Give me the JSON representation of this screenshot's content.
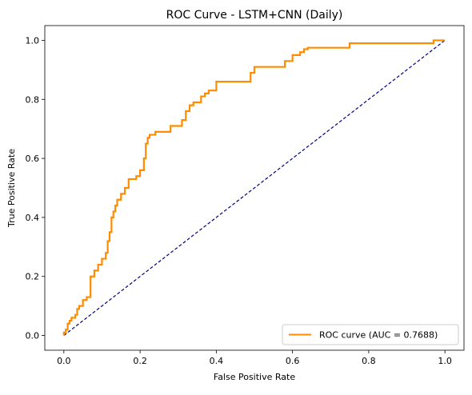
{
  "chart_data": {
    "type": "line",
    "title": "ROC Curve - LSTM+CNN (Daily)",
    "xlabel": "False Positive Rate",
    "ylabel": "True Positive Rate",
    "xlim": [
      -0.05,
      1.05
    ],
    "ylim": [
      -0.05,
      1.05
    ],
    "xticks": [
      0.0,
      0.2,
      0.4,
      0.6,
      0.8,
      1.0
    ],
    "yticks": [
      0.0,
      0.2,
      0.4,
      0.6,
      0.8,
      1.0
    ],
    "tick_labels": [
      "0.0",
      "0.2",
      "0.4",
      "0.6",
      "0.8",
      "1.0"
    ],
    "grid": false,
    "legend": {
      "location": "lower-right",
      "entries": [
        "ROC curve (AUC = 0.7688)"
      ]
    },
    "colors": {
      "roc": "#ff8c00",
      "diagonal": "#000080"
    },
    "series": [
      {
        "name": "ROC curve (AUC = 0.7688)",
        "style": "solid",
        "x": [
          0.0,
          0.0,
          0.005,
          0.005,
          0.01,
          0.01,
          0.015,
          0.015,
          0.02,
          0.02,
          0.03,
          0.03,
          0.035,
          0.035,
          0.04,
          0.04,
          0.05,
          0.05,
          0.06,
          0.06,
          0.07,
          0.07,
          0.08,
          0.08,
          0.09,
          0.09,
          0.1,
          0.1,
          0.11,
          0.11,
          0.115,
          0.115,
          0.12,
          0.12,
          0.125,
          0.125,
          0.13,
          0.13,
          0.135,
          0.135,
          0.14,
          0.14,
          0.15,
          0.15,
          0.16,
          0.16,
          0.17,
          0.17,
          0.19,
          0.19,
          0.2,
          0.2,
          0.21,
          0.21,
          0.215,
          0.215,
          0.22,
          0.22,
          0.225,
          0.225,
          0.23,
          0.23,
          0.24,
          0.24,
          0.25,
          0.25,
          0.28,
          0.28,
          0.31,
          0.31,
          0.32,
          0.32,
          0.33,
          0.33,
          0.34,
          0.34,
          0.36,
          0.36,
          0.37,
          0.37,
          0.38,
          0.38,
          0.4,
          0.4,
          0.49,
          0.49,
          0.5,
          0.5,
          0.58,
          0.58,
          0.6,
          0.6,
          0.62,
          0.62,
          0.63,
          0.63,
          0.64,
          0.64,
          0.75,
          0.75,
          0.97,
          0.97,
          1.0
        ],
        "y": [
          0.0,
          0.01,
          0.01,
          0.02,
          0.02,
          0.04,
          0.04,
          0.05,
          0.05,
          0.06,
          0.06,
          0.07,
          0.07,
          0.09,
          0.09,
          0.1,
          0.1,
          0.12,
          0.12,
          0.13,
          0.13,
          0.2,
          0.2,
          0.22,
          0.22,
          0.24,
          0.24,
          0.26,
          0.26,
          0.28,
          0.28,
          0.32,
          0.32,
          0.35,
          0.35,
          0.4,
          0.4,
          0.42,
          0.42,
          0.44,
          0.44,
          0.46,
          0.46,
          0.48,
          0.48,
          0.5,
          0.5,
          0.53,
          0.53,
          0.54,
          0.54,
          0.56,
          0.56,
          0.6,
          0.6,
          0.65,
          0.65,
          0.67,
          0.67,
          0.68,
          0.68,
          0.68,
          0.68,
          0.69,
          0.69,
          0.69,
          0.69,
          0.71,
          0.71,
          0.73,
          0.73,
          0.76,
          0.76,
          0.78,
          0.78,
          0.79,
          0.79,
          0.81,
          0.81,
          0.82,
          0.82,
          0.83,
          0.83,
          0.86,
          0.86,
          0.89,
          0.89,
          0.91,
          0.91,
          0.93,
          0.93,
          0.95,
          0.95,
          0.96,
          0.96,
          0.97,
          0.97,
          0.975,
          0.975,
          0.99,
          0.99,
          1.0,
          1.0
        ]
      },
      {
        "name": "",
        "style": "dashed",
        "x": [
          0.0,
          1.0
        ],
        "y": [
          0.0,
          1.0
        ]
      }
    ]
  }
}
